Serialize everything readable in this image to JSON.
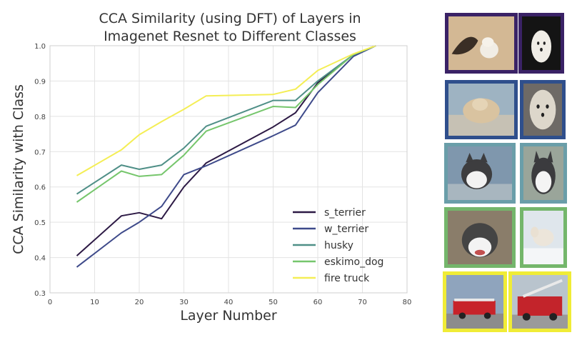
{
  "chart_data": {
    "type": "line",
    "title_lines": [
      "CCA Similarity (using DFT) of Layers in",
      "Imagenet Resnet to Different Classes"
    ],
    "xlabel": "Layer Number",
    "ylabel": "CCA Similarity with Class",
    "xlim": [
      0,
      80
    ],
    "ylim": [
      0.3,
      1.0
    ],
    "xticks": [
      0,
      10,
      20,
      30,
      40,
      50,
      60,
      70,
      80
    ],
    "yticks": [
      0.3,
      0.4,
      0.5,
      0.6,
      0.7,
      0.8,
      0.9,
      1.0
    ],
    "grid": true,
    "legend_position": "lower-right",
    "x": [
      6,
      16,
      20,
      25,
      30,
      35,
      50,
      55,
      60,
      68,
      73
    ],
    "series": [
      {
        "name": "s_terrier",
        "color": "#2d1a45",
        "values": [
          0.405,
          0.518,
          0.527,
          0.51,
          0.6,
          0.668,
          0.77,
          0.81,
          0.895,
          0.975,
          1.0
        ]
      },
      {
        "name": "w_terrier",
        "color": "#3e4a8a",
        "values": [
          0.373,
          0.47,
          0.5,
          0.545,
          0.635,
          0.66,
          0.745,
          0.775,
          0.867,
          0.97,
          1.0
        ]
      },
      {
        "name": "husky",
        "color": "#4f8f87",
        "values": [
          0.58,
          0.662,
          0.65,
          0.662,
          0.71,
          0.772,
          0.845,
          0.845,
          0.9,
          0.975,
          1.0
        ]
      },
      {
        "name": "eskimo_dog",
        "color": "#76c66c",
        "values": [
          0.557,
          0.645,
          0.63,
          0.635,
          0.69,
          0.758,
          0.828,
          0.825,
          0.89,
          0.975,
          1.0
        ]
      },
      {
        "name": "fire truck",
        "color": "#f4ee55",
        "values": [
          0.632,
          0.705,
          0.748,
          0.785,
          0.82,
          0.858,
          0.862,
          0.877,
          0.93,
          0.977,
          1.0
        ]
      }
    ]
  },
  "image_panel": {
    "rows": [
      {
        "class": "s_terrier",
        "border_color": "#3a2266",
        "images": [
          "terrier-with-shadow-photo",
          "terrier-portrait-photo"
        ]
      },
      {
        "class": "w_terrier",
        "border_color": "#2f4f8c",
        "images": [
          "terrier-on-floor-photo",
          "terrier-closeup-photo"
        ]
      },
      {
        "class": "husky",
        "border_color": "#6a9ea9",
        "images": [
          "husky-portrait-photo",
          "husky-face-photo"
        ]
      },
      {
        "class": "eskimo_dog",
        "border_color": "#74b66b",
        "images": [
          "eskimo-dog-open-mouth-photo",
          "eskimo-dog-running-snow-photo"
        ]
      },
      {
        "class": "fire truck",
        "border_color": "#f0ec36",
        "images": [
          "fire-truck-side-photo",
          "fire-truck-ladder-photo"
        ]
      }
    ]
  }
}
